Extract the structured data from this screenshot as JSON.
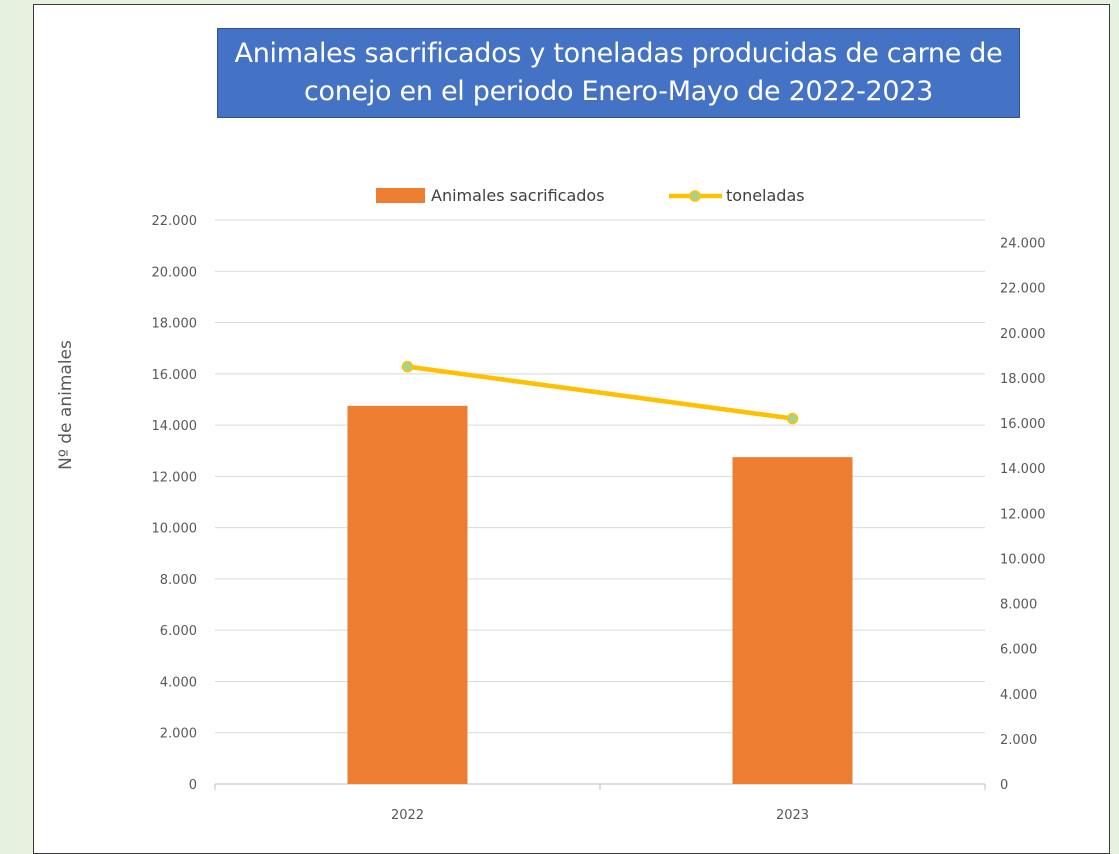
{
  "chart_data": {
    "type": "bar",
    "title": "Animales sacrificados y toneladas producidas de carne de\nconejo en el periodo Enero-Mayo de 2022-2023",
    "categories": [
      "2022",
      "2023"
    ],
    "series": [
      {
        "name": "Animales sacrificados",
        "type": "bar",
        "axis": "left",
        "values": [
          14750,
          12750
        ],
        "color": "#ed7d31"
      },
      {
        "name": "toneladas",
        "type": "line",
        "axis": "right",
        "values": [
          18500,
          16200
        ],
        "color": "#ffc000",
        "marker_color": "#a9d18e"
      }
    ],
    "ylabel": "Nº de animales",
    "ylim": [
      0,
      22000
    ],
    "y_ticks": [
      "0",
      "2.000",
      "4.000",
      "6.000",
      "8.000",
      "10.000",
      "12.000",
      "14.000",
      "16.000",
      "18.000",
      "20.000",
      "22.000"
    ],
    "y2lim": [
      0,
      25000
    ],
    "y2_ticks": [
      "0",
      "2.000",
      "4.000",
      "6.000",
      "8.000",
      "10.000",
      "12.000",
      "14.000",
      "16.000",
      "18.000",
      "20.000",
      "22.000",
      "24.000"
    ],
    "grid": true,
    "legend_position": "top"
  }
}
